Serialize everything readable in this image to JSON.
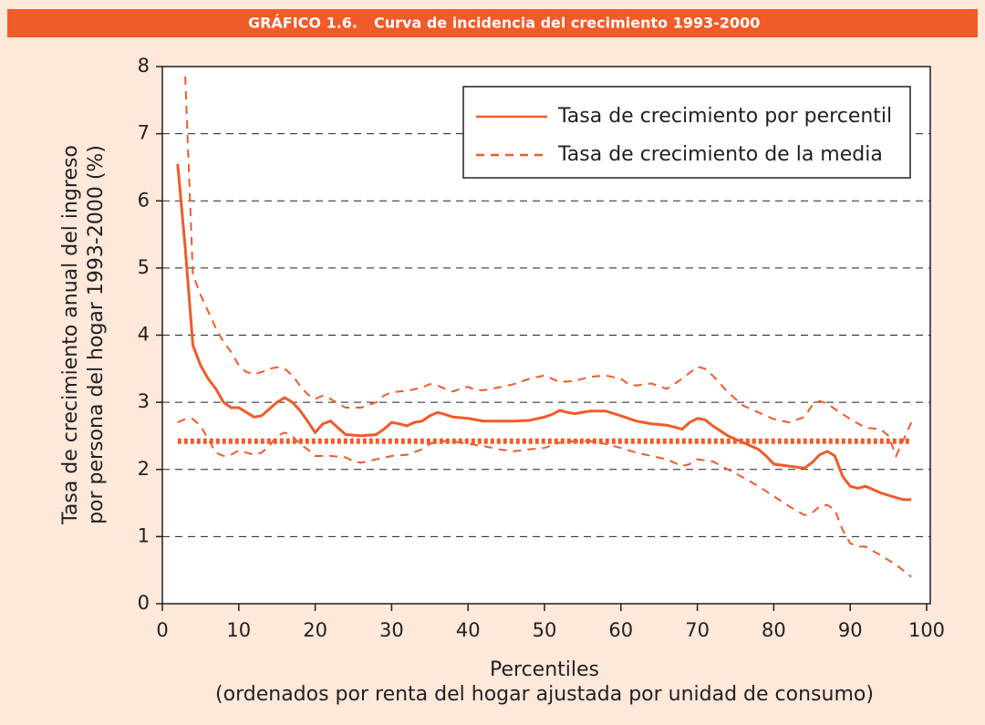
{
  "chart_data": {
    "type": "line",
    "title": [
      "GRÁFICO 1.6.",
      "Curva de incidencia del crecimiento 1993-2000"
    ],
    "ylabel": [
      "Tasa de crecimiento anual del ingreso",
      "por persona del hogar 1993-2000 (%)"
    ],
    "xlabel": [
      "Percentiles",
      "(ordenados por renta del hogar ajustada por unidad de consumo)"
    ],
    "xlim": [
      0,
      100
    ],
    "xticks": [
      0,
      10,
      20,
      30,
      40,
      50,
      60,
      70,
      80,
      90,
      100
    ],
    "ylim": [
      0,
      8
    ],
    "yticks": [
      0,
      1,
      2,
      3,
      4,
      5,
      6,
      7,
      8
    ],
    "grid": true,
    "legend": "upper right",
    "series": [
      {
        "name": "Tasa de crecimiento por percentil",
        "color": "#f15a29",
        "style": "solid",
        "x": [
          2,
          3,
          4,
          5,
          6,
          7,
          8,
          9,
          10,
          11,
          12,
          13,
          14,
          15,
          16,
          17,
          18,
          19,
          20,
          21,
          22,
          23,
          24,
          26,
          28,
          29,
          30,
          31,
          32,
          33,
          34,
          35,
          36,
          37,
          38,
          40,
          42,
          44,
          46,
          48,
          50,
          51,
          52,
          53,
          54,
          56,
          58,
          60,
          62,
          64,
          66,
          68,
          69,
          70,
          71,
          72,
          74,
          76,
          78,
          79,
          80,
          82,
          84,
          85,
          86,
          87,
          88,
          89,
          90,
          91,
          92,
          94,
          96,
          97,
          98
        ],
        "values": [
          6.55,
          5.3,
          3.85,
          3.55,
          3.35,
          3.2,
          3.0,
          2.92,
          2.92,
          2.85,
          2.78,
          2.8,
          2.9,
          3.0,
          3.07,
          3.0,
          2.88,
          2.72,
          2.55,
          2.68,
          2.72,
          2.62,
          2.52,
          2.5,
          2.52,
          2.6,
          2.7,
          2.68,
          2.65,
          2.7,
          2.72,
          2.8,
          2.85,
          2.82,
          2.78,
          2.76,
          2.72,
          2.72,
          2.72,
          2.73,
          2.78,
          2.82,
          2.88,
          2.85,
          2.83,
          2.87,
          2.87,
          2.8,
          2.72,
          2.68,
          2.66,
          2.6,
          2.7,
          2.76,
          2.74,
          2.65,
          2.5,
          2.4,
          2.3,
          2.2,
          2.08,
          2.05,
          2.02,
          2.1,
          2.22,
          2.27,
          2.2,
          1.9,
          1.75,
          1.72,
          1.75,
          1.65,
          1.58,
          1.55,
          1.55
        ]
      },
      {
        "name": "Tasa de crecimiento de la media",
        "color": "#f15a29",
        "style": "dotted",
        "legend_style": "dashed",
        "x": [
          2,
          98
        ],
        "values": [
          2.42,
          2.42
        ]
      },
      {
        "color": "#f15a29",
        "style": "dashed",
        "x": [
          3,
          4,
          5,
          6,
          7,
          8,
          9,
          10,
          11,
          12,
          13,
          14,
          15,
          16,
          17,
          18,
          19,
          20,
          21,
          22,
          23,
          24,
          26,
          28,
          29,
          30,
          32,
          34,
          35,
          36,
          37,
          38,
          39,
          40,
          41,
          42,
          44,
          46,
          48,
          50,
          52,
          54,
          56,
          58,
          60,
          61,
          62,
          64,
          66,
          68,
          70,
          71,
          72,
          74,
          76,
          78,
          80,
          82,
          84,
          85,
          86,
          87,
          88,
          90,
          92,
          94,
          95,
          96,
          97,
          98
        ],
        "values": [
          7.85,
          4.9,
          4.6,
          4.35,
          4.1,
          3.9,
          3.75,
          3.55,
          3.45,
          3.42,
          3.45,
          3.5,
          3.52,
          3.5,
          3.4,
          3.25,
          3.12,
          3.05,
          3.1,
          3.05,
          2.98,
          2.92,
          2.92,
          3.0,
          3.1,
          3.15,
          3.17,
          3.22,
          3.27,
          3.25,
          3.2,
          3.16,
          3.2,
          3.23,
          3.18,
          3.18,
          3.22,
          3.27,
          3.35,
          3.4,
          3.3,
          3.32,
          3.38,
          3.4,
          3.35,
          3.27,
          3.25,
          3.28,
          3.2,
          3.35,
          3.53,
          3.5,
          3.4,
          3.15,
          2.95,
          2.85,
          2.75,
          2.7,
          2.78,
          2.95,
          3.02,
          2.98,
          2.9,
          2.75,
          2.62,
          2.6,
          2.5,
          2.2,
          2.45,
          2.7
        ]
      },
      {
        "color": "#f15a29",
        "style": "dashed",
        "x": [
          2,
          3,
          4,
          5,
          6,
          7,
          8,
          9,
          10,
          11,
          12,
          13,
          14,
          15,
          16,
          17,
          18,
          19,
          20,
          22,
          24,
          25,
          26,
          28,
          30,
          32,
          34,
          35,
          36,
          38,
          40,
          42,
          44,
          46,
          48,
          50,
          52,
          54,
          56,
          58,
          60,
          62,
          64,
          66,
          68,
          69,
          70,
          72,
          74,
          76,
          78,
          80,
          82,
          84,
          85,
          86,
          87,
          88,
          89,
          90,
          91,
          92,
          94,
          96,
          98
        ],
        "values": [
          2.7,
          2.75,
          2.75,
          2.65,
          2.45,
          2.25,
          2.2,
          2.22,
          2.28,
          2.25,
          2.22,
          2.25,
          2.35,
          2.5,
          2.55,
          2.5,
          2.38,
          2.3,
          2.2,
          2.2,
          2.18,
          2.12,
          2.1,
          2.15,
          2.2,
          2.22,
          2.3,
          2.38,
          2.42,
          2.42,
          2.38,
          2.35,
          2.3,
          2.27,
          2.3,
          2.32,
          2.4,
          2.42,
          2.42,
          2.38,
          2.32,
          2.25,
          2.2,
          2.15,
          2.05,
          2.08,
          2.15,
          2.12,
          2.0,
          1.88,
          1.75,
          1.6,
          1.45,
          1.32,
          1.35,
          1.45,
          1.47,
          1.4,
          1.1,
          0.9,
          0.85,
          0.85,
          0.72,
          0.58,
          0.4
        ]
      }
    ]
  }
}
